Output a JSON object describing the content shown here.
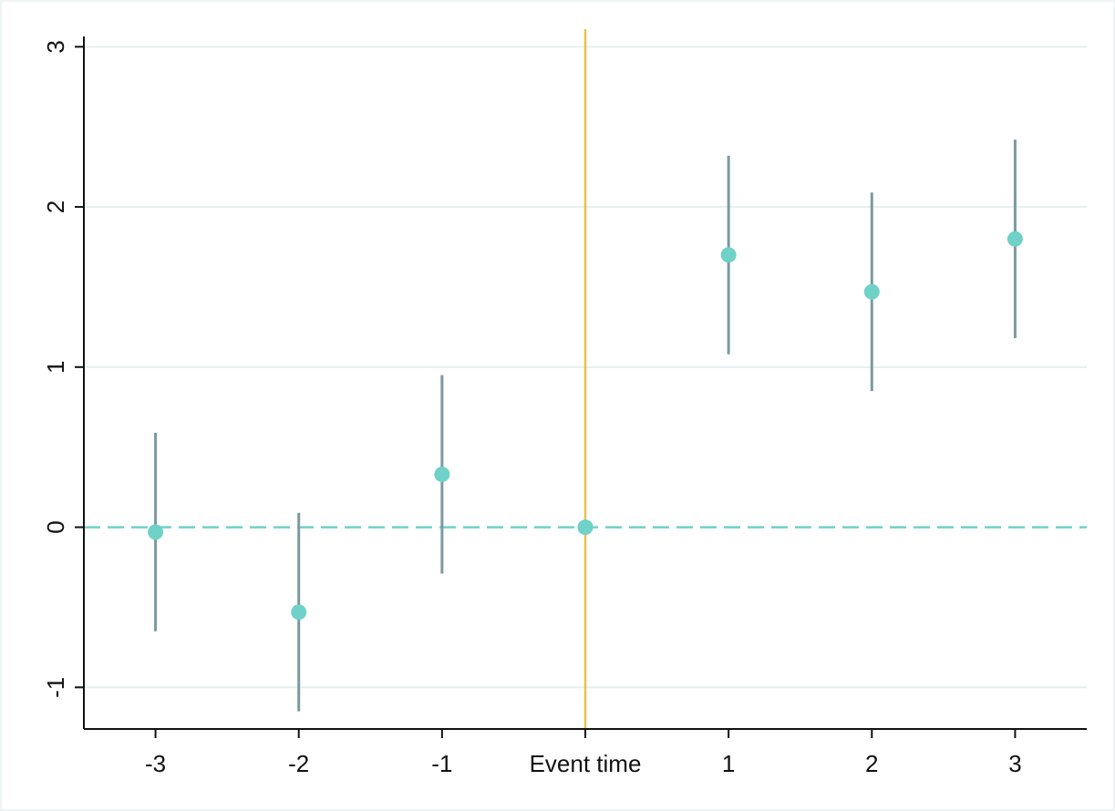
{
  "chart_data": {
    "type": "scatter",
    "x_ticks": [
      {
        "value": -3,
        "label": "-3"
      },
      {
        "value": -2,
        "label": "-2"
      },
      {
        "value": -1,
        "label": "-1"
      },
      {
        "value": 0,
        "label": "Event time"
      },
      {
        "value": 1,
        "label": "1"
      },
      {
        "value": 2,
        "label": "2"
      },
      {
        "value": 3,
        "label": "3"
      }
    ],
    "y_ticks": [
      {
        "value": -1,
        "label": "-1"
      },
      {
        "value": 0,
        "label": "0"
      },
      {
        "value": 1,
        "label": "1"
      },
      {
        "value": 2,
        "label": "2"
      },
      {
        "value": 3,
        "label": "3"
      }
    ],
    "xlim": [
      -3.5,
      3.5
    ],
    "ylim": [
      -1.26,
      3.11
    ],
    "grid": true,
    "points": [
      {
        "x": -3,
        "y": -0.03,
        "ci_low": -0.65,
        "ci_high": 0.59
      },
      {
        "x": -2,
        "y": -0.53,
        "ci_low": -1.15,
        "ci_high": 0.09
      },
      {
        "x": -1,
        "y": 0.33,
        "ci_low": -0.29,
        "ci_high": 0.95
      },
      {
        "x": 0,
        "y": 0.0,
        "ci_low": 0.0,
        "ci_high": 0.0
      },
      {
        "x": 1,
        "y": 1.7,
        "ci_low": 1.08,
        "ci_high": 2.32
      },
      {
        "x": 2,
        "y": 1.47,
        "ci_low": 0.85,
        "ci_high": 2.09
      },
      {
        "x": 3,
        "y": 1.8,
        "ci_low": 1.18,
        "ci_high": 2.42
      }
    ],
    "reference_lines": {
      "horizontal_y": 0,
      "vertical_x": 0
    },
    "colors": {
      "marker": "#6fd1c7",
      "ci": "#7b9aa0",
      "zero_line": "#6fd1c7",
      "event_line": "#e8c24a",
      "grid": "#e6efef",
      "axis": "#111111"
    }
  }
}
